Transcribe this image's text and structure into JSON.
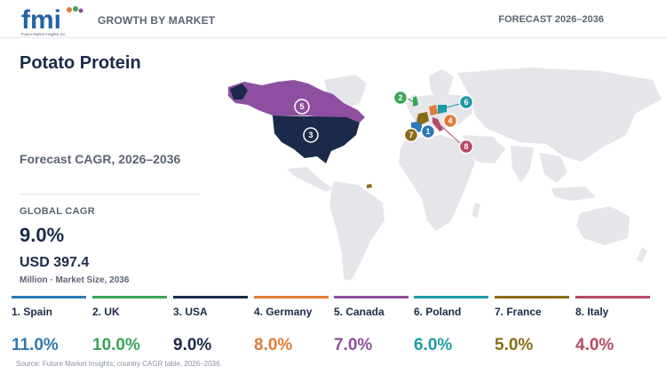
{
  "header": {
    "logo_text": "fmi",
    "logo_subtext": "Future Market Insights, Inc.",
    "title": "GROWTH BY MARKET",
    "right": "FORECAST 2026–2036"
  },
  "main": {
    "title": "Potato Protein",
    "forecast_label": "Forecast CAGR, 2026–2036",
    "global_cagr_label": "GLOBAL CAGR",
    "global_cagr_value": "9.0%",
    "market_size_value": "USD 397.4",
    "market_size_label": "Million · Market Size, 2036"
  },
  "countries": [
    {
      "rank": "1",
      "name": "1. Spain",
      "cagr": "11.0%",
      "color": "#2e78b7"
    },
    {
      "rank": "2",
      "name": "2. UK",
      "cagr": "10.0%",
      "color": "#3aa657"
    },
    {
      "rank": "3",
      "name": "3. USA",
      "cagr": "9.0%",
      "color": "#1b2a4a"
    },
    {
      "rank": "4",
      "name": "4. Germany",
      "cagr": "8.0%",
      "color": "#e07b39"
    },
    {
      "rank": "5",
      "name": "5. Canada",
      "cagr": "7.0%",
      "color": "#8e4fa0"
    },
    {
      "rank": "6",
      "name": "6. Poland",
      "cagr": "6.0%",
      "color": "#1f9aa8"
    },
    {
      "rank": "7",
      "name": "7. France",
      "cagr": "5.0%",
      "color": "#8b6b17"
    },
    {
      "rank": "8",
      "name": "8. Italy",
      "cagr": "4.0%",
      "color": "#b64a66"
    }
  ],
  "map": {
    "land_color": "#e4e6ea",
    "markers": [
      "1",
      "2",
      "3",
      "4",
      "5",
      "6",
      "7",
      "8"
    ]
  },
  "source": "Source: Future Market Insights; country CAGR table, 2026–2036."
}
